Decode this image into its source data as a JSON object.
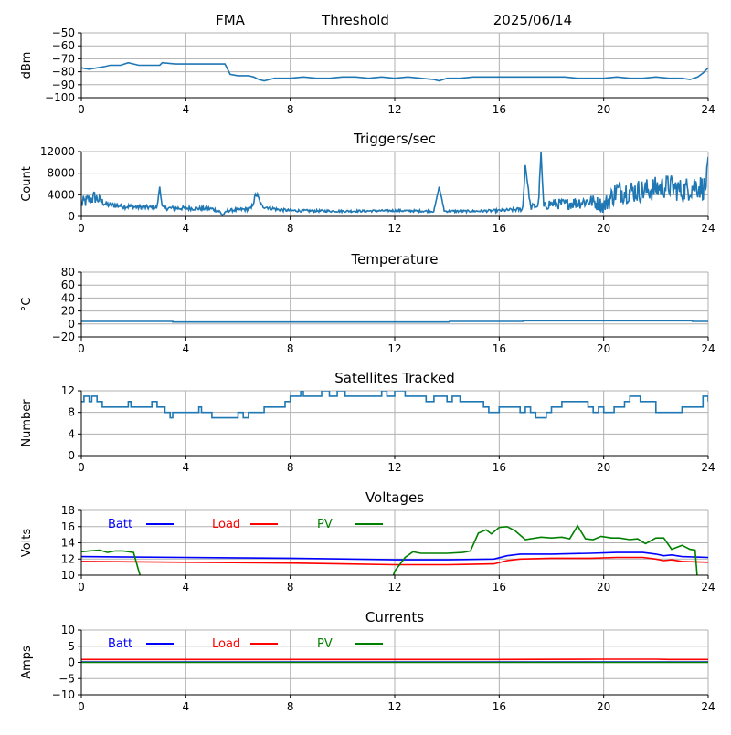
{
  "header": {
    "site": "FMA",
    "metric": "Threshold",
    "date": "2025/06/14"
  },
  "colors": {
    "series": "#1f77b4",
    "batt": "#0000ff",
    "load": "#ff0000",
    "pv": "#008000",
    "grid": "#b0b0b0",
    "axis": "#000000"
  },
  "chart_data": [
    {
      "type": "line",
      "title": "",
      "xlabel": "",
      "ylabel": "dBm",
      "xlim": [
        0,
        24
      ],
      "ylim": [
        -100,
        -50
      ],
      "xticks": [
        0,
        4,
        8,
        12,
        16,
        20,
        24
      ],
      "yticks": [
        -100,
        -90,
        -80,
        -70,
        -60,
        -50
      ],
      "ytick_labels": [
        "−100",
        "−90",
        "−80",
        "−70",
        "−60",
        "−50"
      ],
      "grid": true,
      "series": [
        {
          "color": "series",
          "x": [
            0,
            0.3,
            0.6,
            0.9,
            1.1,
            1.5,
            1.8,
            2.2,
            2.6,
            3.0,
            3.1,
            3.6,
            4.0,
            4.5,
            5.0,
            5.5,
            5.7,
            6.0,
            6.4,
            6.6,
            6.8,
            7.0,
            7.4,
            8.0,
            8.5,
            9.0,
            9.5,
            10.0,
            10.5,
            11.0,
            11.5,
            12.0,
            12.5,
            13.0,
            13.5,
            13.7,
            14.0,
            14.5,
            15.0,
            15.5,
            16.0,
            16.5,
            17.0,
            17.5,
            18.0,
            18.5,
            19.0,
            19.5,
            20.0,
            20.5,
            21.0,
            21.5,
            22.0,
            22.5,
            23.0,
            23.3,
            23.6,
            23.8,
            24.0
          ],
          "y": [
            -77,
            -78,
            -77,
            -76,
            -75,
            -75,
            -73,
            -75,
            -75,
            -75,
            -73,
            -74,
            -74,
            -74,
            -74,
            -74,
            -82,
            -83,
            -83,
            -84,
            -86,
            -87,
            -85,
            -85,
            -84,
            -85,
            -85,
            -84,
            -84,
            -85,
            -84,
            -85,
            -84,
            -85,
            -86,
            -87,
            -85,
            -85,
            -84,
            -84,
            -84,
            -84,
            -84,
            -84,
            -84,
            -84,
            -85,
            -85,
            -85,
            -84,
            -85,
            -85,
            -84,
            -85,
            -85,
            -86,
            -84,
            -81,
            -77
          ]
        }
      ]
    },
    {
      "type": "line",
      "title": "Triggers/sec",
      "xlabel": "",
      "ylabel": "Count",
      "xlim": [
        0,
        24
      ],
      "ylim": [
        0,
        12000
      ],
      "xticks": [
        0,
        4,
        8,
        12,
        16,
        20,
        24
      ],
      "yticks": [
        0,
        4000,
        8000,
        12000
      ],
      "grid": true,
      "series": [
        {
          "color": "series",
          "noise": true,
          "x": [
            0,
            0.5,
            1.0,
            2.0,
            2.9,
            3.0,
            3.1,
            3.3,
            4.0,
            5.0,
            5.3,
            5.4,
            5.6,
            6.5,
            6.7,
            6.9,
            7.5,
            8.0,
            10.0,
            12.0,
            13.5,
            13.7,
            13.9,
            15.0,
            16.0,
            16.9,
            17.0,
            17.2,
            17.5,
            17.6,
            17.7,
            17.9,
            18.5,
            19.0,
            19.5,
            20.0,
            20.5,
            21.0,
            21.5,
            22.0,
            22.5,
            23.0,
            23.5,
            23.9,
            24.0
          ],
          "y": [
            2000,
            3200,
            2000,
            1600,
            1500,
            5500,
            1500,
            1400,
            1400,
            1300,
            800,
            200,
            1000,
            1300,
            4000,
            1800,
            1200,
            1000,
            900,
            1000,
            900,
            5500,
            900,
            900,
            1000,
            1200,
            9500,
            1500,
            1800,
            12000,
            1500,
            2000,
            2000,
            2200,
            2500,
            1500,
            4000,
            4000,
            4000,
            4500,
            5000,
            4000,
            5000,
            4500,
            11000
          ],
          "amp": [
            2500,
            2500,
            1000,
            1000,
            800,
            0,
            800,
            800,
            800,
            700,
            600,
            0,
            600,
            700,
            1500,
            800,
            600,
            500,
            400,
            400,
            400,
            0,
            400,
            400,
            500,
            800,
            0,
            1200,
            1500,
            0,
            1500,
            2000,
            2000,
            2500,
            2500,
            3000,
            4500,
            4500,
            4500,
            4500,
            4500,
            4500,
            5000,
            4500,
            0
          ]
        }
      ]
    },
    {
      "type": "line",
      "title": "Temperature",
      "xlabel": "",
      "ylabel": "°C",
      "xlim": [
        0,
        24
      ],
      "ylim": [
        -20,
        80
      ],
      "xticks": [
        0,
        4,
        8,
        12,
        16,
        20,
        24
      ],
      "yticks": [
        -20,
        0,
        20,
        40,
        60,
        80
      ],
      "ytick_labels": [
        "−20",
        "0",
        "20",
        "40",
        "60",
        "80"
      ],
      "grid": true,
      "series": [
        {
          "color": "series",
          "step": true,
          "x": [
            0,
            3.4,
            3.5,
            14.0,
            14.1,
            16.8,
            16.9,
            23.3,
            23.4,
            24
          ],
          "y": [
            4,
            4,
            3,
            3,
            4,
            4,
            5,
            5,
            4,
            4
          ]
        }
      ]
    },
    {
      "type": "line",
      "title": "Satellites Tracked",
      "xlabel": "",
      "ylabel": "Number",
      "xlim": [
        0,
        24
      ],
      "ylim": [
        0,
        12
      ],
      "xticks": [
        0,
        4,
        8,
        12,
        16,
        20,
        24
      ],
      "yticks": [
        0,
        4,
        8,
        12
      ],
      "grid": true,
      "series": [
        {
          "color": "series",
          "step": true,
          "x": [
            0,
            0.1,
            0.3,
            0.4,
            0.6,
            0.8,
            1.0,
            1.8,
            1.9,
            2.0,
            2.7,
            2.9,
            3.0,
            3.2,
            3.4,
            3.5,
            3.6,
            3.8,
            4.5,
            4.6,
            5.0,
            5.5,
            6.0,
            6.2,
            6.4,
            6.6,
            7.0,
            7.4,
            7.8,
            8.0,
            8.4,
            8.5,
            8.8,
            9.2,
            9.5,
            9.8,
            10.1,
            11.0,
            11.5,
            11.7,
            12.0,
            12.4,
            12.8,
            13.2,
            13.5,
            14.0,
            14.2,
            14.5,
            15.0,
            15.4,
            15.6,
            16.0,
            16.4,
            16.8,
            17.0,
            17.2,
            17.4,
            17.8,
            18.0,
            18.4,
            19.0,
            19.4,
            19.6,
            19.8,
            20.0,
            20.4,
            20.8,
            21.0,
            21.4,
            21.5,
            22.0,
            22.8,
            23.0,
            23.6,
            23.8,
            24.0
          ],
          "y": [
            10,
            11,
            10,
            11,
            10,
            9,
            9,
            10,
            9,
            9,
            10,
            9,
            9,
            8,
            7,
            8,
            8,
            8,
            9,
            8,
            7,
            7,
            8,
            7,
            8,
            8,
            9,
            9,
            10,
            11,
            12,
            11,
            11,
            12,
            11,
            12,
            11,
            11,
            12,
            11,
            12,
            11,
            11,
            10,
            11,
            10,
            11,
            10,
            10,
            9,
            8,
            9,
            9,
            8,
            9,
            8,
            7,
            8,
            9,
            10,
            10,
            9,
            8,
            9,
            8,
            9,
            10,
            11,
            10,
            10,
            8,
            8,
            9,
            9,
            11,
            10
          ]
        }
      ]
    },
    {
      "type": "line",
      "title": "Voltages",
      "xlabel": "",
      "ylabel": "Volts",
      "xlim": [
        0,
        24
      ],
      "ylim": [
        10,
        18
      ],
      "xticks": [
        0,
        4,
        8,
        12,
        16,
        20,
        24
      ],
      "yticks": [
        10,
        12,
        14,
        16,
        18
      ],
      "grid": true,
      "legend": "top-left",
      "series": [
        {
          "name": "Batt",
          "color": "batt",
          "x": [
            0,
            4,
            8,
            12,
            14,
            15.8,
            16.3,
            16.8,
            18,
            19.5,
            20.5,
            21.5,
            22.0,
            22.3,
            22.6,
            23.0,
            24.0
          ],
          "y": [
            12.3,
            12.2,
            12.1,
            11.9,
            11.9,
            12.0,
            12.4,
            12.6,
            12.6,
            12.7,
            12.8,
            12.8,
            12.6,
            12.4,
            12.5,
            12.3,
            12.2
          ]
        },
        {
          "name": "Load",
          "color": "load",
          "x": [
            0,
            4,
            8,
            12,
            14,
            15.8,
            16.3,
            16.8,
            18,
            19.5,
            20.5,
            21.5,
            22.0,
            22.3,
            22.6,
            23.0,
            24.0
          ],
          "y": [
            11.7,
            11.6,
            11.5,
            11.3,
            11.3,
            11.4,
            11.8,
            12.0,
            12.1,
            12.1,
            12.2,
            12.2,
            12.0,
            11.8,
            11.9,
            11.7,
            11.6
          ]
        },
        {
          "name": "PV",
          "color": "pv",
          "x": [
            0,
            0.3,
            0.7,
            1.0,
            1.3,
            1.6,
            2.0,
            2.2,
            2.3,
            2.4,
            11.9,
            12.0,
            12.4,
            12.7,
            13.0,
            14.0,
            14.6,
            14.9,
            15.2,
            15.5,
            15.7,
            16.0,
            16.3,
            16.6,
            17.0,
            17.6,
            18.0,
            18.4,
            18.7,
            19.0,
            19.3,
            19.6,
            19.9,
            20.3,
            20.6,
            21.0,
            21.3,
            21.6,
            22.0,
            22.3,
            22.6,
            23.0,
            23.3,
            23.5,
            23.6
          ],
          "y": [
            12.9,
            13.0,
            13.1,
            12.8,
            13.0,
            13.0,
            12.8,
            10.5,
            9.5,
            9.0,
            9.5,
            10.5,
            12.2,
            12.9,
            12.7,
            12.7,
            12.8,
            13.0,
            15.2,
            15.6,
            15.1,
            15.9,
            16.0,
            15.5,
            14.4,
            14.7,
            14.6,
            14.7,
            14.5,
            16.1,
            14.5,
            14.4,
            14.8,
            14.6,
            14.6,
            14.4,
            14.5,
            13.9,
            14.6,
            14.6,
            13.2,
            13.7,
            13.2,
            13.1,
            9.0
          ]
        }
      ]
    },
    {
      "type": "line",
      "title": "Currents",
      "xlabel": "",
      "ylabel": "Amps",
      "xlim": [
        0,
        24
      ],
      "ylim": [
        -10,
        10
      ],
      "xticks": [
        0,
        4,
        8,
        12,
        16,
        20,
        24
      ],
      "yticks": [
        -10,
        -5,
        0,
        5,
        10
      ],
      "ytick_labels": [
        "−10",
        "−5",
        "0",
        "5",
        "10"
      ],
      "grid": true,
      "legend": "top-left",
      "series": [
        {
          "name": "Batt",
          "color": "batt",
          "x": [
            0,
            24
          ],
          "y": [
            0.1,
            0.1
          ]
        },
        {
          "name": "Load",
          "color": "load",
          "x": [
            0,
            4,
            8,
            12,
            16,
            20,
            22,
            22.5,
            24
          ],
          "y": [
            0.9,
            0.9,
            0.9,
            0.9,
            0.9,
            1.0,
            1.0,
            0.9,
            0.9
          ]
        },
        {
          "name": "PV",
          "color": "pv",
          "x": [
            0,
            24
          ],
          "y": [
            0.0,
            0.0
          ]
        }
      ]
    }
  ]
}
